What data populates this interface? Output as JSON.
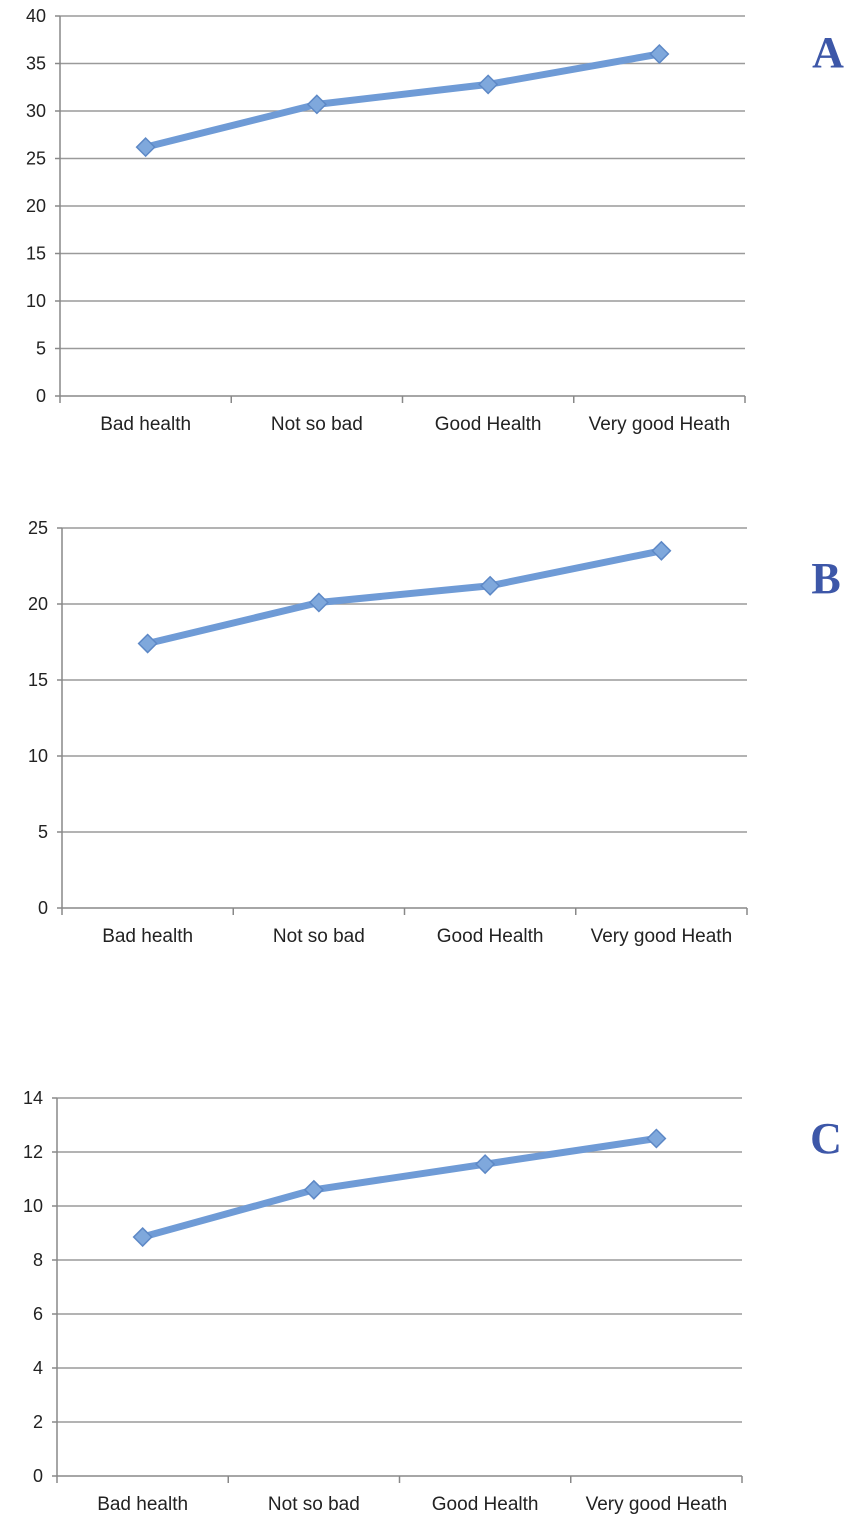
{
  "colors": {
    "line": "#6f9bd6",
    "marker_fill": "#7fa8dc",
    "marker_stroke": "#5d88c6",
    "grid": "#9a9a9a",
    "axis": "#888888",
    "text": "#222222",
    "panel_letter": "#3d57a8"
  },
  "chart_data": [
    {
      "type": "line",
      "panel_label": "A",
      "categories": [
        "Bad health",
        "Not so bad",
        "Good Health",
        "Very good Heath"
      ],
      "series": [
        {
          "values": [
            26.2,
            30.7,
            32.8,
            36.0
          ]
        }
      ],
      "ylim": [
        0,
        40
      ],
      "yticks": [
        0,
        5,
        10,
        15,
        20,
        25,
        30,
        35,
        40
      ],
      "grid": true,
      "legend": "none"
    },
    {
      "type": "line",
      "panel_label": "B",
      "categories": [
        "Bad health",
        "Not so bad",
        "Good Health",
        "Very good Heath"
      ],
      "series": [
        {
          "values": [
            17.4,
            20.1,
            21.2,
            23.5
          ]
        }
      ],
      "ylim": [
        0,
        25
      ],
      "yticks": [
        0,
        5,
        10,
        15,
        20,
        25
      ],
      "grid": true,
      "legend": "none"
    },
    {
      "type": "line",
      "panel_label": "C",
      "categories": [
        "Bad health",
        "Not so bad",
        "Good Health",
        "Very good Heath"
      ],
      "series": [
        {
          "values": [
            8.85,
            10.6,
            11.55,
            12.5
          ]
        }
      ],
      "ylim": [
        0,
        14
      ],
      "yticks": [
        0,
        2,
        4,
        6,
        8,
        10,
        12,
        14
      ],
      "grid": true,
      "legend": "none"
    }
  ]
}
